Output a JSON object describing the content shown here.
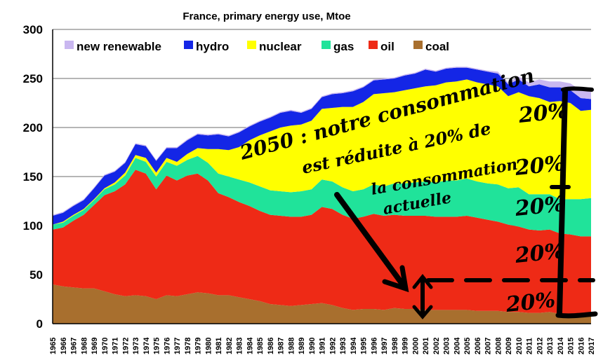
{
  "chart_data": {
    "type": "area",
    "title": "France, primary energy use, Mtoe",
    "xlabel": "",
    "ylabel": "",
    "ylim": [
      0,
      300
    ],
    "yticks": [
      "0",
      "50",
      "100",
      "150",
      "200",
      "250",
      "300"
    ],
    "stacked": true,
    "grid": "horizontal",
    "legend_position": "top-left",
    "x": [
      "1965",
      "1966",
      "1967",
      "1968",
      "1969",
      "1970",
      "1971",
      "1972",
      "1973",
      "1974",
      "1975",
      "1976",
      "1977",
      "1978",
      "1979",
      "1980",
      "1981",
      "1982",
      "1983",
      "1984",
      "1985",
      "1986",
      "1987",
      "1988",
      "1989",
      "1990",
      "1991",
      "1992",
      "1993",
      "1994",
      "1995",
      "1996",
      "1997",
      "1998",
      "1999",
      "2000",
      "2001",
      "2002",
      "2003",
      "2004",
      "2005",
      "2006",
      "2007",
      "2008",
      "2009",
      "2010",
      "2011",
      "2012",
      "2013",
      "2014",
      "2015",
      "2016",
      "2017"
    ],
    "series": [
      {
        "name": "coal",
        "color": "#a86f2e",
        "values": [
          40,
          38,
          37,
          36,
          36,
          33,
          30,
          28,
          29,
          28,
          25,
          29,
          28,
          30,
          32,
          31,
          29,
          29,
          27,
          25,
          23,
          20,
          19,
          18,
          19,
          20,
          21,
          19,
          16,
          14,
          15,
          15,
          14,
          16,
          15,
          15,
          14,
          14,
          14,
          14,
          14,
          13,
          13,
          13,
          12,
          12,
          11,
          11,
          12,
          10,
          9,
          9,
          9
        ]
      },
      {
        "name": "oil",
        "color": "#ee2a16",
        "values": [
          56,
          60,
          68,
          75,
          85,
          98,
          105,
          114,
          128,
          125,
          112,
          122,
          118,
          121,
          121,
          115,
          104,
          100,
          97,
          95,
          92,
          91,
          91,
          91,
          90,
          91,
          98,
          98,
          95,
          93,
          94,
          97,
          96,
          95,
          95,
          95,
          96,
          95,
          95,
          95,
          96,
          95,
          93,
          91,
          89,
          87,
          85,
          84,
          84,
          82,
          82,
          80,
          80
        ]
      },
      {
        "name": "gas",
        "color": "#20e39a",
        "values": [
          5,
          5,
          5,
          5,
          5,
          6,
          7,
          9,
          12,
          12,
          13,
          14,
          15,
          16,
          18,
          18,
          20,
          21,
          23,
          24,
          25,
          25,
          25,
          25,
          26,
          26,
          28,
          28,
          28,
          28,
          28,
          30,
          30,
          32,
          33,
          34,
          35,
          35,
          37,
          37,
          38,
          37,
          37,
          38,
          37,
          40,
          36,
          37,
          36,
          35,
          36,
          38,
          39
        ]
      },
      {
        "name": "nuclear",
        "color": "#ffff00",
        "values": [
          0,
          1,
          1,
          1,
          1,
          1,
          2,
          3,
          3,
          4,
          4,
          4,
          4,
          6,
          8,
          14,
          25,
          27,
          33,
          43,
          52,
          60,
          65,
          68,
          68,
          70,
          72,
          75,
          82,
          86,
          89,
          92,
          95,
          93,
          95,
          96,
          97,
          99,
          100,
          101,
          101,
          101,
          101,
          100,
          94,
          97,
          100,
          98,
          94,
          100,
          98,
          90,
          90
        ]
      },
      {
        "name": "hydro",
        "color": "#1426e6",
        "values": [
          9,
          9,
          9,
          9,
          11,
          13,
          11,
          10,
          11,
          12,
          12,
          10,
          14,
          14,
          14,
          14,
          15,
          14,
          15,
          14,
          14,
          14,
          15,
          15,
          12,
          12,
          12,
          14,
          14,
          16,
          15,
          14,
          14,
          14,
          15,
          15,
          17,
          14,
          14,
          14,
          12,
          13,
          13,
          13,
          12,
          13,
          10,
          14,
          15,
          14,
          13,
          13,
          11
        ]
      },
      {
        "name": "new renewable",
        "color": "#c9b7f0",
        "values": [
          1,
          1,
          1,
          1,
          1,
          1,
          1,
          1,
          1,
          1,
          1,
          1,
          1,
          1,
          1,
          1,
          1,
          1,
          1,
          1,
          1,
          1,
          1,
          1,
          1,
          1,
          1,
          1,
          1,
          1,
          1,
          1,
          1,
          1,
          1,
          1,
          1,
          1,
          1,
          1,
          1,
          1,
          1,
          2,
          2,
          3,
          4,
          5,
          6,
          6,
          7,
          8,
          9
        ]
      }
    ],
    "annotations": {
      "main_note": [
        "2050 : notre consommation",
        "est réduite à 20% de",
        "la consommation",
        "actuelle"
      ],
      "shares": [
        "20%",
        "20%",
        "20%",
        "20%",
        "20%"
      ]
    }
  }
}
